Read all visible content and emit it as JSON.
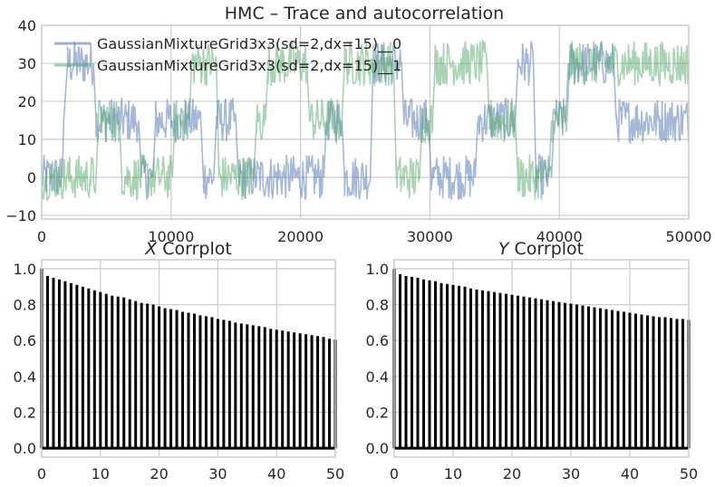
{
  "chart_data": [
    {
      "type": "line",
      "title": "HMC – Trace and autocorrelation",
      "xlabel": "",
      "ylabel": "",
      "xlim": [
        0,
        50000
      ],
      "ylim": [
        -11,
        40
      ],
      "xticks": [
        "0",
        "10000",
        "20000",
        "30000",
        "40000",
        "50000"
      ],
      "yticks": [
        "−10",
        "0",
        "10",
        "20",
        "30",
        "40"
      ],
      "grid": true,
      "legend_position": "top-left",
      "series": [
        {
          "name": "GaussianMixtureGrid3x3(sd=2,dx=15)__0",
          "color": "#4c72b0",
          "segments": [
            [
              0,
              0
            ],
            [
              1600,
              0
            ],
            [
              1700,
              15
            ],
            [
              2000,
              30
            ],
            [
              4000,
              30
            ],
            [
              4200,
              15
            ],
            [
              7500,
              15
            ],
            [
              7700,
              0
            ],
            [
              8600,
              0
            ],
            [
              8800,
              15
            ],
            [
              12300,
              15
            ],
            [
              12500,
              0
            ],
            [
              13300,
              0
            ],
            [
              13500,
              15
            ],
            [
              15000,
              15
            ],
            [
              15200,
              0
            ],
            [
              21800,
              0
            ],
            [
              22000,
              15
            ],
            [
              23200,
              15
            ],
            [
              23400,
              0
            ],
            [
              25400,
              0
            ],
            [
              25600,
              30
            ],
            [
              27800,
              30
            ],
            [
              28000,
              15
            ],
            [
              29900,
              15
            ],
            [
              30100,
              0
            ],
            [
              33500,
              0
            ],
            [
              33700,
              15
            ],
            [
              36600,
              15
            ],
            [
              36800,
              30
            ],
            [
              38000,
              30
            ],
            [
              38200,
              0
            ],
            [
              39400,
              0
            ],
            [
              39600,
              15
            ],
            [
              40500,
              15
            ],
            [
              40700,
              30
            ],
            [
              44200,
              30
            ],
            [
              44400,
              15
            ],
            [
              50000,
              15
            ]
          ]
        },
        {
          "name": "GaussianMixtureGrid3x3(sd=2,dx=15)__1",
          "color": "#55a868",
          "segments": [
            [
              0,
              0
            ],
            [
              4200,
              0
            ],
            [
              4400,
              15
            ],
            [
              6000,
              15
            ],
            [
              6200,
              0
            ],
            [
              10100,
              0
            ],
            [
              10300,
              15
            ],
            [
              11400,
              15
            ],
            [
              11600,
              30
            ],
            [
              13500,
              30
            ],
            [
              13700,
              0
            ],
            [
              16400,
              0
            ],
            [
              16600,
              15
            ],
            [
              17300,
              15
            ],
            [
              17500,
              30
            ],
            [
              20500,
              30
            ],
            [
              20700,
              15
            ],
            [
              23200,
              15
            ],
            [
              23400,
              30
            ],
            [
              27200,
              30
            ],
            [
              27400,
              0
            ],
            [
              29200,
              0
            ],
            [
              29400,
              15
            ],
            [
              30200,
              15
            ],
            [
              30400,
              30
            ],
            [
              34400,
              30
            ],
            [
              34600,
              15
            ],
            [
              36600,
              15
            ],
            [
              36800,
              0
            ],
            [
              39200,
              0
            ],
            [
              39400,
              15
            ],
            [
              40600,
              15
            ],
            [
              40800,
              30
            ],
            [
              50000,
              30
            ]
          ]
        }
      ]
    },
    {
      "type": "bar",
      "title": "X Corrplot",
      "title_italic_part": "X",
      "title_rest": " Corrplot",
      "xlim": [
        0,
        50
      ],
      "ylim": [
        -0.05,
        1.05
      ],
      "xticks": [
        "0",
        "10",
        "20",
        "30",
        "40",
        "50"
      ],
      "yticks": [
        "0.0",
        "0.2",
        "0.4",
        "0.6",
        "0.8",
        "1.0"
      ],
      "grid": true,
      "x": [
        0,
        1,
        2,
        3,
        4,
        5,
        6,
        7,
        8,
        9,
        10,
        11,
        12,
        13,
        14,
        15,
        16,
        17,
        18,
        19,
        20,
        21,
        22,
        23,
        24,
        25,
        26,
        27,
        28,
        29,
        30,
        31,
        32,
        33,
        34,
        35,
        36,
        37,
        38,
        39,
        40,
        41,
        42,
        43,
        44,
        45,
        46,
        47,
        48,
        49,
        50
      ],
      "values": [
        1.0,
        0.96,
        0.95,
        0.94,
        0.93,
        0.92,
        0.91,
        0.9,
        0.89,
        0.88,
        0.87,
        0.86,
        0.85,
        0.845,
        0.84,
        0.83,
        0.82,
        0.81,
        0.805,
        0.8,
        0.79,
        0.78,
        0.775,
        0.77,
        0.76,
        0.755,
        0.75,
        0.74,
        0.735,
        0.73,
        0.72,
        0.715,
        0.71,
        0.7,
        0.695,
        0.69,
        0.685,
        0.68,
        0.675,
        0.665,
        0.66,
        0.655,
        0.65,
        0.645,
        0.64,
        0.635,
        0.63,
        0.625,
        0.62,
        0.61,
        0.605
      ]
    },
    {
      "type": "bar",
      "title": "Y Corrplot",
      "title_italic_part": "Y",
      "title_rest": " Corrplot",
      "xlim": [
        0,
        50
      ],
      "ylim": [
        -0.05,
        1.05
      ],
      "xticks": [
        "0",
        "10",
        "20",
        "30",
        "40",
        "50"
      ],
      "yticks": [
        "0.0",
        "0.2",
        "0.4",
        "0.6",
        "0.8",
        "1.0"
      ],
      "grid": true,
      "x": [
        0,
        1,
        2,
        3,
        4,
        5,
        6,
        7,
        8,
        9,
        10,
        11,
        12,
        13,
        14,
        15,
        16,
        17,
        18,
        19,
        20,
        21,
        22,
        23,
        24,
        25,
        26,
        27,
        28,
        29,
        30,
        31,
        32,
        33,
        34,
        35,
        36,
        37,
        38,
        39,
        40,
        41,
        42,
        43,
        44,
        45,
        46,
        47,
        48,
        49,
        50
      ],
      "values": [
        1.0,
        0.97,
        0.96,
        0.955,
        0.95,
        0.94,
        0.935,
        0.93,
        0.92,
        0.915,
        0.91,
        0.905,
        0.9,
        0.89,
        0.885,
        0.88,
        0.875,
        0.87,
        0.865,
        0.86,
        0.855,
        0.85,
        0.845,
        0.84,
        0.835,
        0.83,
        0.825,
        0.82,
        0.815,
        0.81,
        0.805,
        0.8,
        0.795,
        0.79,
        0.785,
        0.78,
        0.775,
        0.77,
        0.765,
        0.76,
        0.755,
        0.75,
        0.745,
        0.74,
        0.735,
        0.73,
        0.73,
        0.725,
        0.72,
        0.72,
        0.715
      ]
    }
  ]
}
